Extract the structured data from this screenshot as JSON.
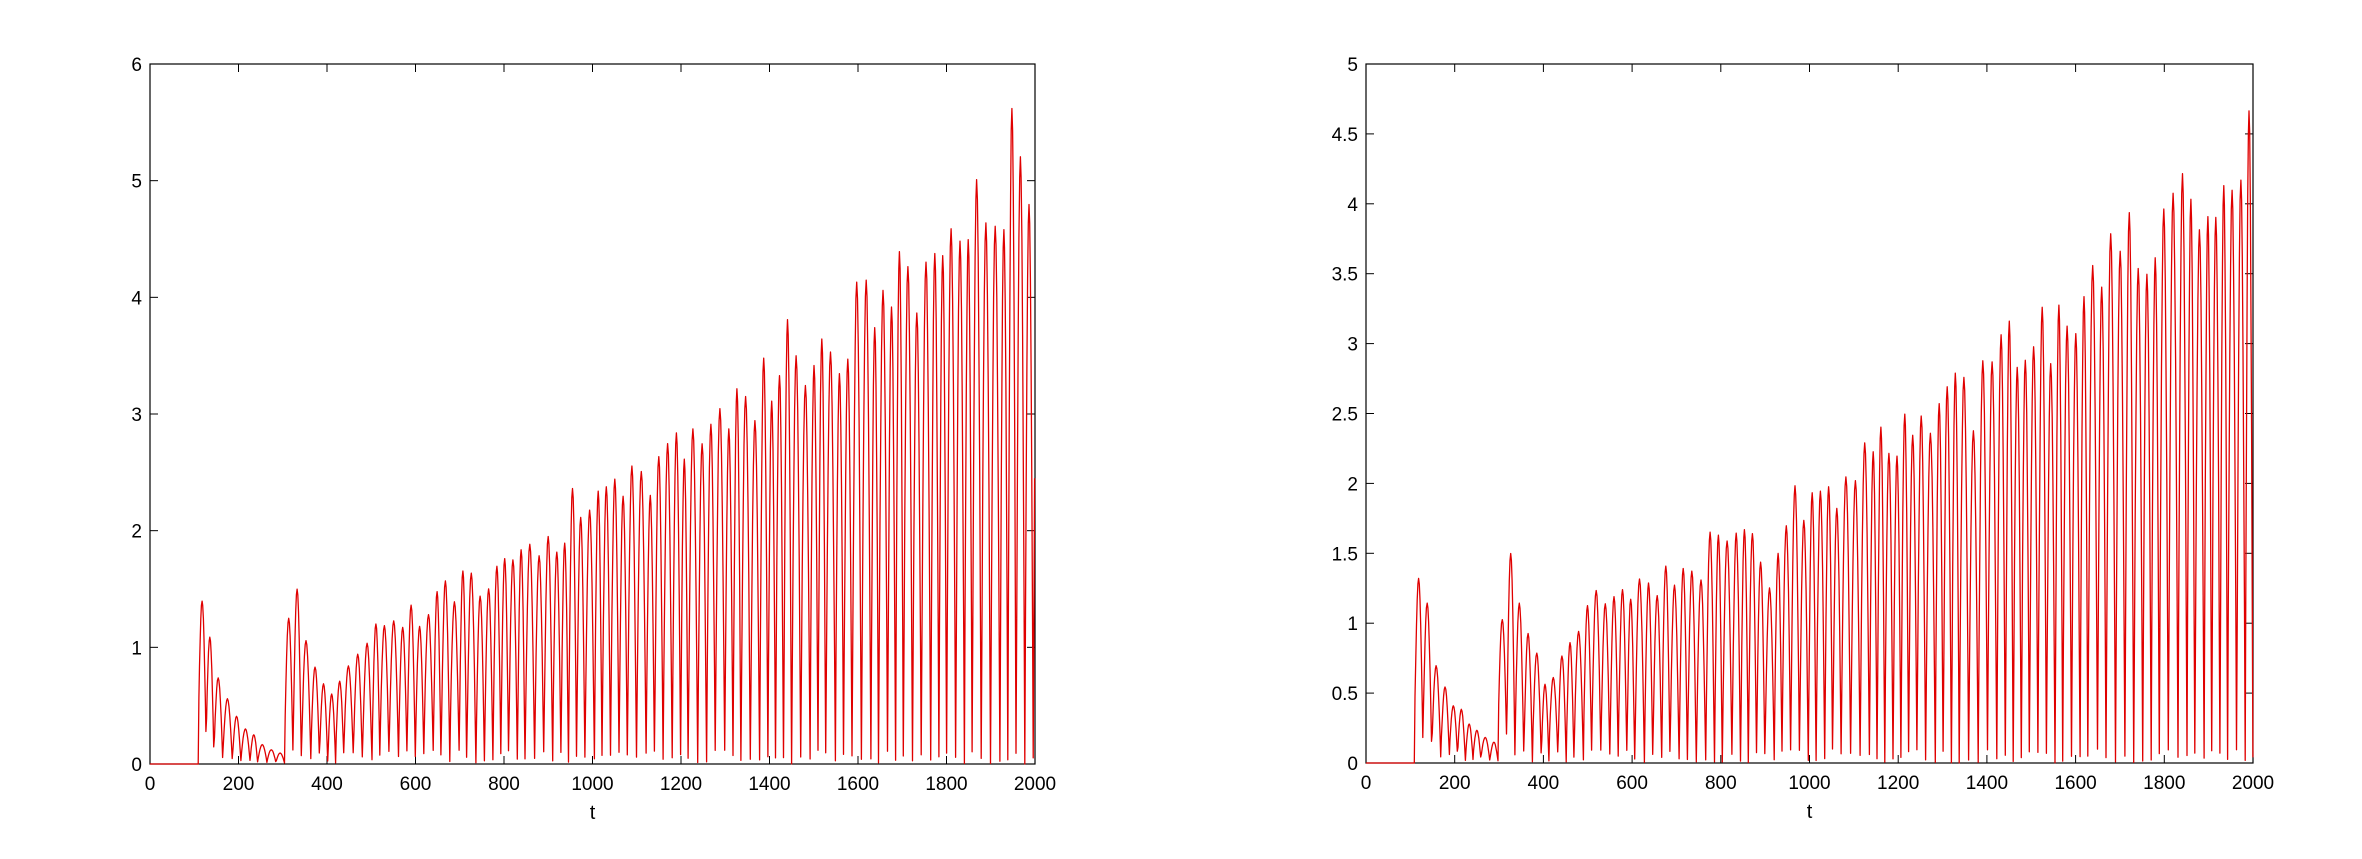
{
  "colors": {
    "series": "#e00000",
    "axes": "#000000",
    "background": "#ffffff"
  },
  "chart_data": [
    {
      "type": "line",
      "title": "",
      "xlabel": "t",
      "ylabel": "",
      "xlim": [
        0,
        2000
      ],
      "ylim": [
        0,
        6
      ],
      "xticks": [
        0,
        200,
        400,
        600,
        800,
        1000,
        1200,
        1400,
        1600,
        1800,
        2000
      ],
      "yticks": [
        0,
        1,
        2,
        3,
        4,
        5,
        6
      ],
      "xtick_labels": [
        "0",
        "200",
        "400",
        "600",
        "800",
        "1000",
        "1200",
        "1400",
        "1600",
        "1800",
        "2000"
      ],
      "ytick_labels": [
        "0",
        "1",
        "2",
        "3",
        "4",
        "5",
        "6"
      ],
      "grid": false,
      "legend": "none",
      "series": [
        {
          "color": "#e00000",
          "x": [
            0,
            90,
            100,
            110,
            120,
            150,
            200,
            250,
            290,
            300,
            320,
            350,
            400,
            450,
            500,
            550,
            600,
            650,
            700,
            750,
            800,
            850,
            900,
            950,
            1000,
            1050,
            1100,
            1150,
            1200,
            1250,
            1300,
            1350,
            1400,
            1450,
            1500,
            1550,
            1600,
            1650,
            1700,
            1750,
            1800,
            1850,
            1900,
            1930,
            1950,
            1980,
            2000
          ],
          "y": [
            0,
            0,
            1.05,
            1.55,
            1.3,
            0.7,
            0.35,
            0.15,
            0.1,
            1.4,
            1.6,
            1.0,
            0.6,
            0.9,
            1.3,
            1.35,
            1.35,
            1.55,
            1.6,
            1.7,
            2.05,
            1.9,
            2.05,
            2.3,
            2.3,
            2.4,
            2.6,
            2.75,
            2.85,
            3.2,
            3.25,
            3.3,
            3.55,
            3.75,
            3.7,
            3.75,
            4.15,
            4.25,
            4.35,
            4.5,
            4.85,
            4.9,
            5.05,
            5.45,
            5.5,
            5.45,
            5.4
          ]
        }
      ]
    },
    {
      "type": "line",
      "title": "",
      "xlabel": "t",
      "ylabel": "",
      "xlim": [
        0,
        2000
      ],
      "ylim": [
        0,
        5
      ],
      "xticks": [
        0,
        200,
        400,
        600,
        800,
        1000,
        1200,
        1400,
        1600,
        1800,
        2000
      ],
      "yticks": [
        0,
        0.5,
        1,
        1.5,
        2,
        2.5,
        3,
        3.5,
        4,
        4.5,
        5
      ],
      "xtick_labels": [
        "0",
        "200",
        "400",
        "600",
        "800",
        "1000",
        "1200",
        "1400",
        "1600",
        "1800",
        "2000"
      ],
      "ytick_labels": [
        "0",
        "0.5",
        "1",
        "1.5",
        "2",
        "2.5",
        "3",
        "3.5",
        "4",
        "4.5",
        "5"
      ],
      "grid": false,
      "legend": "none",
      "series": [
        {
          "color": "#e00000",
          "x": [
            0,
            90,
            100,
            110,
            120,
            150,
            200,
            250,
            290,
            300,
            310,
            350,
            400,
            450,
            500,
            550,
            600,
            650,
            700,
            750,
            800,
            850,
            900,
            950,
            1000,
            1050,
            1100,
            1150,
            1200,
            1250,
            1300,
            1350,
            1400,
            1450,
            1500,
            1550,
            1600,
            1650,
            1700,
            1750,
            1800,
            1850,
            1900,
            1950,
            2000
          ],
          "y": [
            0,
            0,
            1.05,
            1.55,
            1.3,
            0.7,
            0.4,
            0.2,
            0.15,
            1.45,
            1.6,
            1.0,
            0.6,
            0.9,
            1.2,
            1.3,
            1.35,
            1.35,
            1.4,
            1.5,
            1.8,
            1.85,
            1.2,
            1.9,
            2.1,
            2.1,
            2.2,
            2.3,
            2.6,
            2.4,
            2.85,
            2.7,
            2.95,
            3.15,
            3.4,
            3.2,
            3.6,
            3.75,
            3.85,
            3.7,
            4.2,
            4.25,
            4.2,
            4.35,
            4.65
          ]
        }
      ]
    }
  ]
}
